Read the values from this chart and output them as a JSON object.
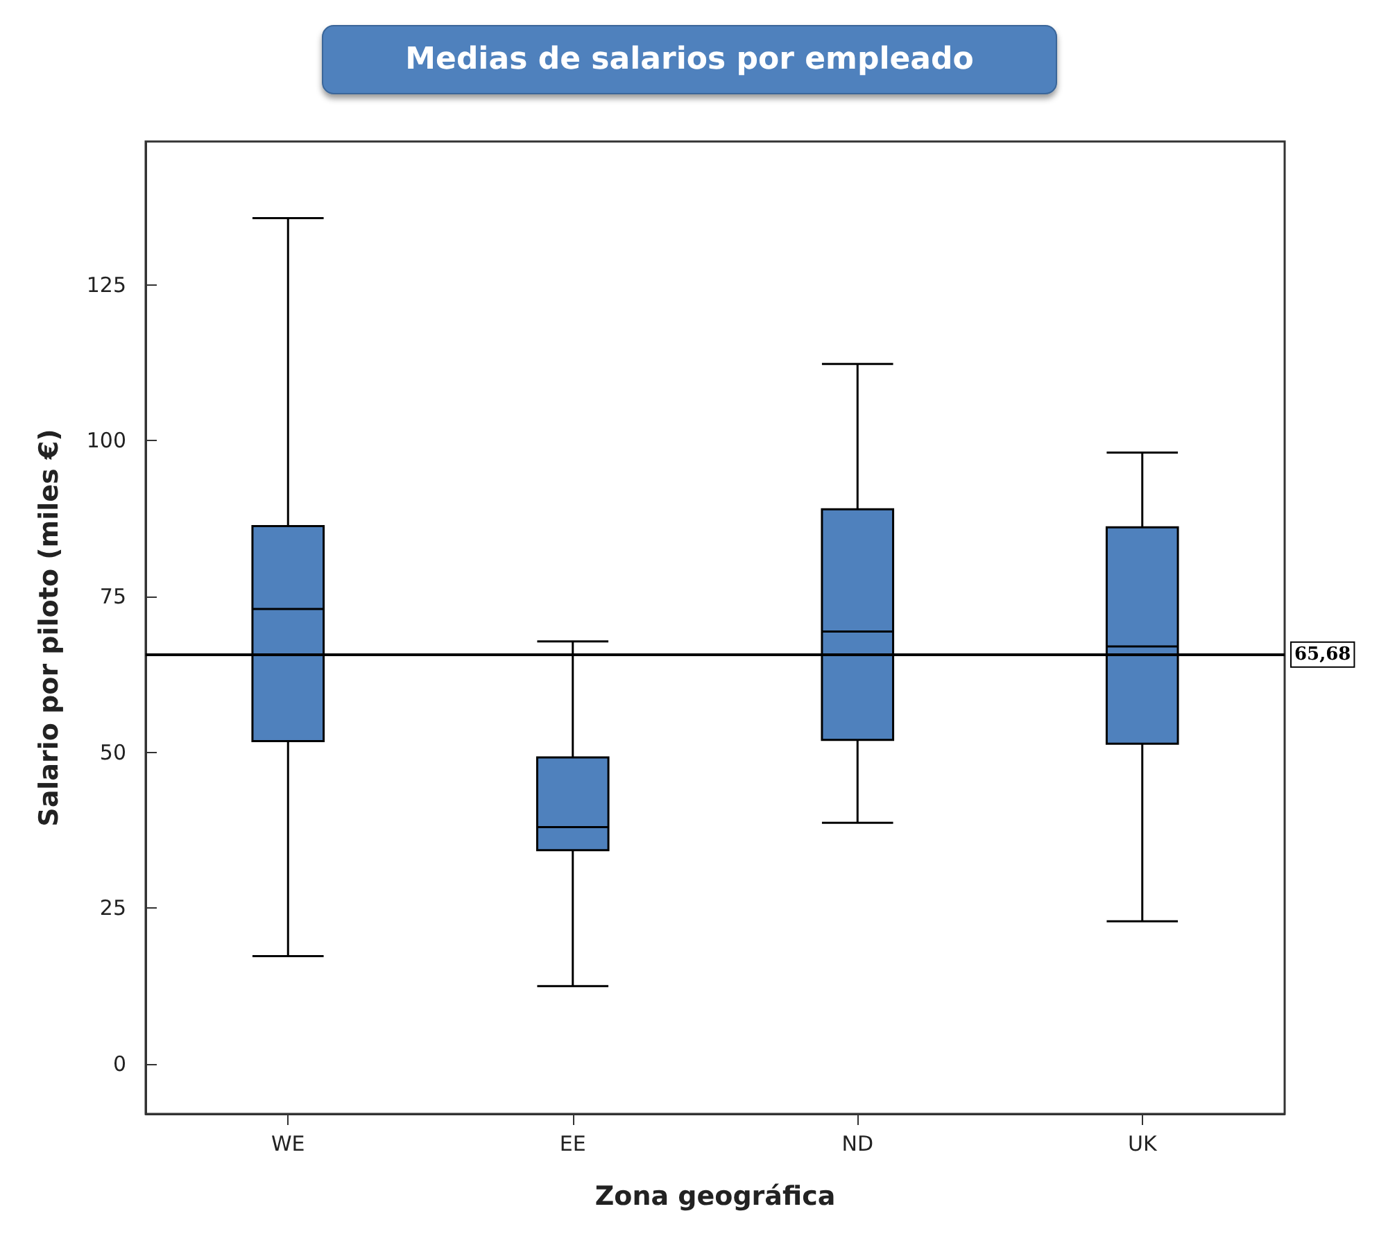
{
  "chart_data": {
    "type": "box",
    "title": "Medias de salarios por empleado",
    "xlabel": "Zona geográfica",
    "ylabel": "Salario por piloto (miles €)",
    "categories": [
      "WE",
      "EE",
      "ND",
      "UK"
    ],
    "color": "#4f81bd",
    "boxes": [
      {
        "low": 17.3,
        "q1": 51.8,
        "median": 73.0,
        "q3": 86.3,
        "high": 135.7
      },
      {
        "low": 12.5,
        "q1": 34.3,
        "median": 38.0,
        "q3": 49.2,
        "high": 67.8
      },
      {
        "low": 38.7,
        "q1": 52.0,
        "median": 69.4,
        "q3": 89.0,
        "high": 112.3
      },
      {
        "low": 22.9,
        "q1": 51.4,
        "median": 67.0,
        "q3": 86.1,
        "high": 98.1
      }
    ],
    "ylim": [
      -8,
      148
    ],
    "yticks": [
      0,
      25,
      50,
      75,
      100,
      125
    ],
    "ref_lines": [
      {
        "axis": "y",
        "value": 65.68,
        "label": "65,68"
      }
    ],
    "grid": false
  }
}
